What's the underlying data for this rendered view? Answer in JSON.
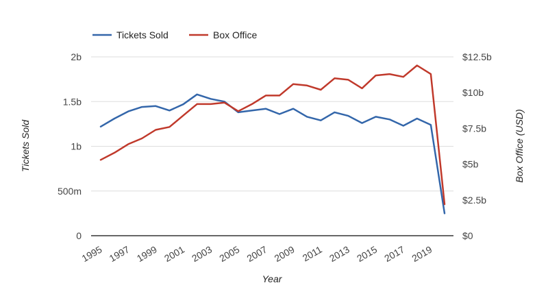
{
  "chart_data": {
    "type": "line",
    "x": [
      1995,
      1996,
      1997,
      1998,
      1999,
      2000,
      2001,
      2002,
      2003,
      2004,
      2005,
      2006,
      2007,
      2008,
      2009,
      2010,
      2011,
      2012,
      2013,
      2014,
      2015,
      2016,
      2017,
      2018,
      2019,
      2020
    ],
    "xlabel": "Year",
    "x_tick_labels": [
      "1995",
      "1997",
      "1999",
      "2001",
      "2003",
      "2005",
      "2007",
      "2009",
      "2011",
      "2013",
      "2015",
      "2017",
      "2019"
    ],
    "series": [
      {
        "name": "Tickets Sold",
        "axis": "left",
        "color": "#3366aa",
        "values": [
          1.22,
          1.31,
          1.39,
          1.44,
          1.45,
          1.4,
          1.47,
          1.58,
          1.53,
          1.5,
          1.38,
          1.4,
          1.42,
          1.36,
          1.42,
          1.33,
          1.29,
          1.38,
          1.34,
          1.26,
          1.33,
          1.3,
          1.23,
          1.31,
          1.24,
          0.25
        ]
      },
      {
        "name": "Box Office",
        "axis": "right",
        "color": "#c0392b",
        "values": [
          5.3,
          5.8,
          6.4,
          6.8,
          7.4,
          7.6,
          8.4,
          9.2,
          9.2,
          9.3,
          8.7,
          9.2,
          9.8,
          9.8,
          10.6,
          10.5,
          10.2,
          11.0,
          10.9,
          10.3,
          11.2,
          11.3,
          11.1,
          11.9,
          11.3,
          2.2
        ]
      }
    ],
    "y_left": {
      "label": "Tickets Sold",
      "range": [
        0,
        2
      ],
      "ticks": [
        0,
        0.5,
        1,
        1.5,
        2
      ],
      "tick_labels": [
        "0",
        "500m",
        "1b",
        "1.5b",
        "2b"
      ]
    },
    "y_right": {
      "label": "Box Office (USD)",
      "range": [
        0,
        12.5
      ],
      "ticks": [
        0,
        2.5,
        5,
        7.5,
        10,
        12.5
      ],
      "tick_labels": [
        "$0",
        "$2.5b",
        "$5b",
        "$7.5b",
        "$10b",
        "$12.5b"
      ]
    },
    "grid": true,
    "legend_position": "top-left"
  }
}
